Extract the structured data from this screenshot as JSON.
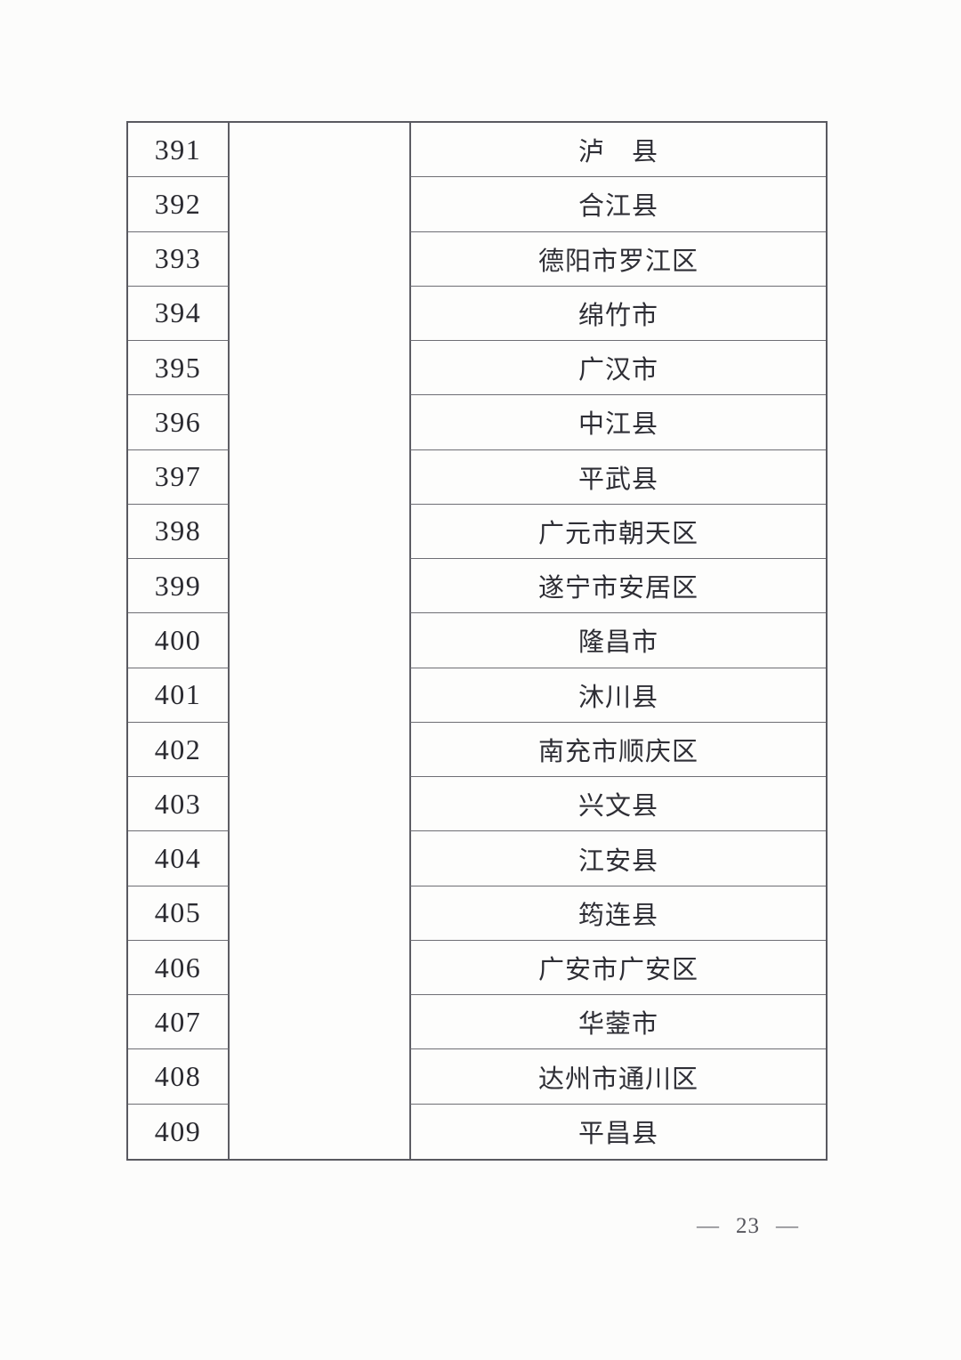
{
  "colors": {
    "paper": "#fcfcfb",
    "ink": "#2b2b31",
    "border": "#5d5d64"
  },
  "table": {
    "province_cell": "",
    "rows": [
      {
        "number": "391",
        "name": "泸　县"
      },
      {
        "number": "392",
        "name": "合江县"
      },
      {
        "number": "393",
        "name": "德阳市罗江区"
      },
      {
        "number": "394",
        "name": "绵竹市"
      },
      {
        "number": "395",
        "name": "广汉市"
      },
      {
        "number": "396",
        "name": "中江县"
      },
      {
        "number": "397",
        "name": "平武县"
      },
      {
        "number": "398",
        "name": "广元市朝天区"
      },
      {
        "number": "399",
        "name": "遂宁市安居区"
      },
      {
        "number": "400",
        "name": "隆昌市"
      },
      {
        "number": "401",
        "name": "沐川县"
      },
      {
        "number": "402",
        "name": "南充市顺庆区"
      },
      {
        "number": "403",
        "name": "兴文县"
      },
      {
        "number": "404",
        "name": "江安县"
      },
      {
        "number": "405",
        "name": "筠连县"
      },
      {
        "number": "406",
        "name": "广安市广安区"
      },
      {
        "number": "407",
        "name": "华蓥市"
      },
      {
        "number": "408",
        "name": "达州市通川区"
      },
      {
        "number": "409",
        "name": "平昌县"
      }
    ]
  },
  "footer": {
    "dash_left": "—",
    "page_number": "23",
    "dash_right": "—"
  }
}
